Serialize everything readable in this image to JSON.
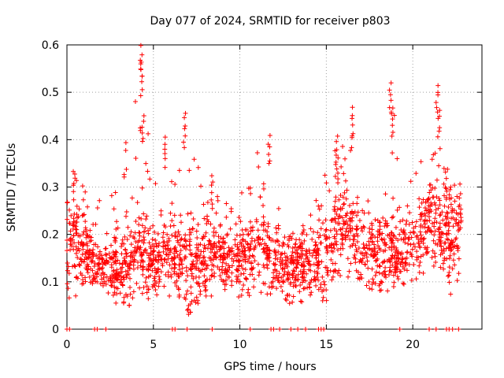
{
  "chart_data": {
    "type": "scatter",
    "title": "Day 077 of 2024, SRMTID for receiver p803",
    "xlabel": "GPS time / hours",
    "ylabel": "SRMTID / TECUs",
    "xlim": [
      0,
      24
    ],
    "ylim": [
      0,
      0.6
    ],
    "x_ticks": [
      0,
      5,
      10,
      15,
      20
    ],
    "x_tick_labels": [
      "0",
      "5",
      "10",
      "15",
      "20"
    ],
    "y_ticks": [
      0,
      0.1,
      0.2,
      0.3,
      0.4,
      0.5,
      0.6
    ],
    "y_tick_labels": [
      "0",
      "0.1",
      "0.2",
      "0.3",
      "0.4",
      "0.5",
      "0.6"
    ],
    "grid": true,
    "marker": "plus",
    "color": "#ff0000",
    "point_count_estimate": 2100,
    "x_range_observed": [
      0,
      22.8
    ],
    "envelope_hourly": [
      {
        "x": 0,
        "low": 0.06,
        "typical": 0.17,
        "high": 0.35
      },
      {
        "x": 1,
        "low": 0.08,
        "typical": 0.16,
        "high": 0.35
      },
      {
        "x": 2,
        "low": 0.08,
        "typical": 0.13,
        "high": 0.3
      },
      {
        "x": 3,
        "low": 0.05,
        "typical": 0.12,
        "high": 0.33
      },
      {
        "x": 4,
        "low": 0.05,
        "typical": 0.16,
        "high": 0.6
      },
      {
        "x": 5,
        "low": 0.07,
        "typical": 0.15,
        "high": 0.41
      },
      {
        "x": 6,
        "low": 0.07,
        "typical": 0.15,
        "high": 0.38
      },
      {
        "x": 7,
        "low": 0.03,
        "typical": 0.14,
        "high": 0.46
      },
      {
        "x": 8,
        "low": 0.07,
        "typical": 0.16,
        "high": 0.33
      },
      {
        "x": 9,
        "low": 0.07,
        "typical": 0.15,
        "high": 0.3
      },
      {
        "x": 10,
        "low": 0.06,
        "typical": 0.15,
        "high": 0.3
      },
      {
        "x": 11,
        "low": 0.08,
        "typical": 0.17,
        "high": 0.41
      },
      {
        "x": 12,
        "low": 0.07,
        "typical": 0.14,
        "high": 0.3
      },
      {
        "x": 13,
        "low": 0.05,
        "typical": 0.13,
        "high": 0.25
      },
      {
        "x": 14,
        "low": 0.06,
        "typical": 0.14,
        "high": 0.25
      },
      {
        "x": 15,
        "low": 0.06,
        "typical": 0.16,
        "high": 0.37
      },
      {
        "x": 16,
        "low": 0.1,
        "typical": 0.22,
        "high": 0.47
      },
      {
        "x": 17,
        "low": 0.08,
        "typical": 0.17,
        "high": 0.42
      },
      {
        "x": 18,
        "low": 0.07,
        "typical": 0.16,
        "high": 0.3
      },
      {
        "x": 19,
        "low": 0.09,
        "typical": 0.16,
        "high": 0.52
      },
      {
        "x": 20,
        "low": 0.1,
        "typical": 0.18,
        "high": 0.35
      },
      {
        "x": 21,
        "low": 0.13,
        "typical": 0.23,
        "high": 0.52
      },
      {
        "x": 22,
        "low": 0.06,
        "typical": 0.2,
        "high": 0.37
      },
      {
        "x": 22.8,
        "low": 0.12,
        "typical": 0.22,
        "high": 0.3
      }
    ],
    "peaks": [
      {
        "x": 0.4,
        "y": 0.34
      },
      {
        "x": 4.3,
        "y": 0.6
      },
      {
        "x": 4.3,
        "y": 0.56
      },
      {
        "x": 4.4,
        "y": 0.46
      },
      {
        "x": 5.7,
        "y": 0.41
      },
      {
        "x": 6.8,
        "y": 0.46
      },
      {
        "x": 8.4,
        "y": 0.33
      },
      {
        "x": 11.7,
        "y": 0.41
      },
      {
        "x": 15.6,
        "y": 0.41
      },
      {
        "x": 16.5,
        "y": 0.47
      },
      {
        "x": 18.7,
        "y": 0.52
      },
      {
        "x": 18.8,
        "y": 0.47
      },
      {
        "x": 21.4,
        "y": 0.52
      },
      {
        "x": 21.5,
        "y": 0.47
      }
    ],
    "zero_value_times": [
      0.0,
      0.15,
      1.6,
      1.75,
      2.25,
      6.1,
      6.25,
      6.95,
      8.4,
      10.6,
      11.8,
      11.95,
      12.3,
      12.95,
      13.35,
      13.8,
      14.55,
      14.7,
      14.85,
      19.25,
      20.95,
      21.35,
      21.95,
      22.1,
      22.3,
      22.65
    ]
  }
}
